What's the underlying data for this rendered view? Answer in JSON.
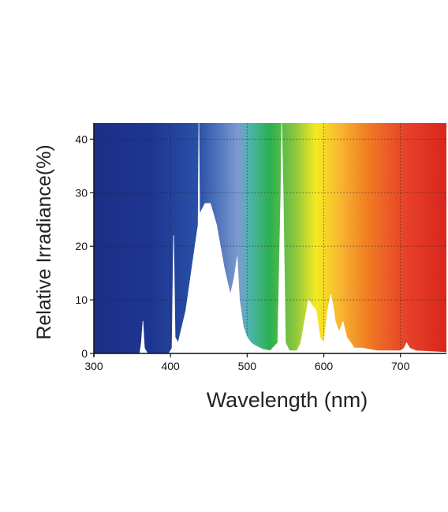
{
  "chart_data": {
    "type": "area",
    "title": "",
    "xlabel": "Wavelength (nm)",
    "ylabel": "Relative Irradiance(%)",
    "xlim": [
      300,
      760
    ],
    "ylim": [
      0,
      43
    ],
    "x_ticks": [
      300,
      400,
      500,
      600,
      700
    ],
    "y_ticks": [
      0,
      10,
      20,
      30,
      40
    ],
    "grid": true,
    "background": "visible-spectrum gradient",
    "series": [
      {
        "values": [
          [
            300,
            0
          ],
          [
            360,
            0
          ],
          [
            362,
            2
          ],
          [
            364,
            6
          ],
          [
            366,
            1
          ],
          [
            370,
            0
          ],
          [
            398,
            0
          ],
          [
            402,
            1
          ],
          [
            404,
            22
          ],
          [
            406,
            3
          ],
          [
            410,
            2
          ],
          [
            420,
            8
          ],
          [
            430,
            18
          ],
          [
            436,
            24
          ],
          [
            437,
            43
          ],
          [
            438,
            26
          ],
          [
            445,
            28
          ],
          [
            452,
            28
          ],
          [
            460,
            24
          ],
          [
            470,
            16
          ],
          [
            478,
            11
          ],
          [
            483,
            14
          ],
          [
            487,
            18
          ],
          [
            490,
            10
          ],
          [
            495,
            5
          ],
          [
            500,
            3
          ],
          [
            505,
            2
          ],
          [
            510,
            1.5
          ],
          [
            520,
            0.8
          ],
          [
            530,
            0.5
          ],
          [
            540,
            2
          ],
          [
            544,
            30
          ],
          [
            545,
            43
          ],
          [
            547,
            30
          ],
          [
            550,
            2
          ],
          [
            555,
            0.5
          ],
          [
            565,
            0.5
          ],
          [
            570,
            2
          ],
          [
            575,
            6
          ],
          [
            580,
            10
          ],
          [
            585,
            9
          ],
          [
            590,
            8
          ],
          [
            595,
            3
          ],
          [
            600,
            2
          ],
          [
            605,
            8
          ],
          [
            609,
            11
          ],
          [
            612,
            9
          ],
          [
            615,
            6
          ],
          [
            620,
            4
          ],
          [
            625,
            6
          ],
          [
            630,
            3
          ],
          [
            640,
            1
          ],
          [
            650,
            1
          ],
          [
            670,
            0.5
          ],
          [
            690,
            0.5
          ],
          [
            700,
            0.5
          ],
          [
            705,
            1
          ],
          [
            708,
            2
          ],
          [
            712,
            1
          ],
          [
            720,
            0.5
          ],
          [
            760,
            0.2
          ]
        ]
      }
    ],
    "colors": {
      "spectrum_stops": [
        "#1c2f87",
        "#1e3590",
        "#2a52a8",
        "#7d9ad0",
        "#4fb3b0",
        "#2bb04f",
        "#8cc63f",
        "#f4ea21",
        "#f8b530",
        "#f07a23",
        "#e8432a",
        "#d8261c"
      ],
      "curve_fill": "#ffffff",
      "grid": "#1a1a1a",
      "text": "#111111"
    }
  }
}
